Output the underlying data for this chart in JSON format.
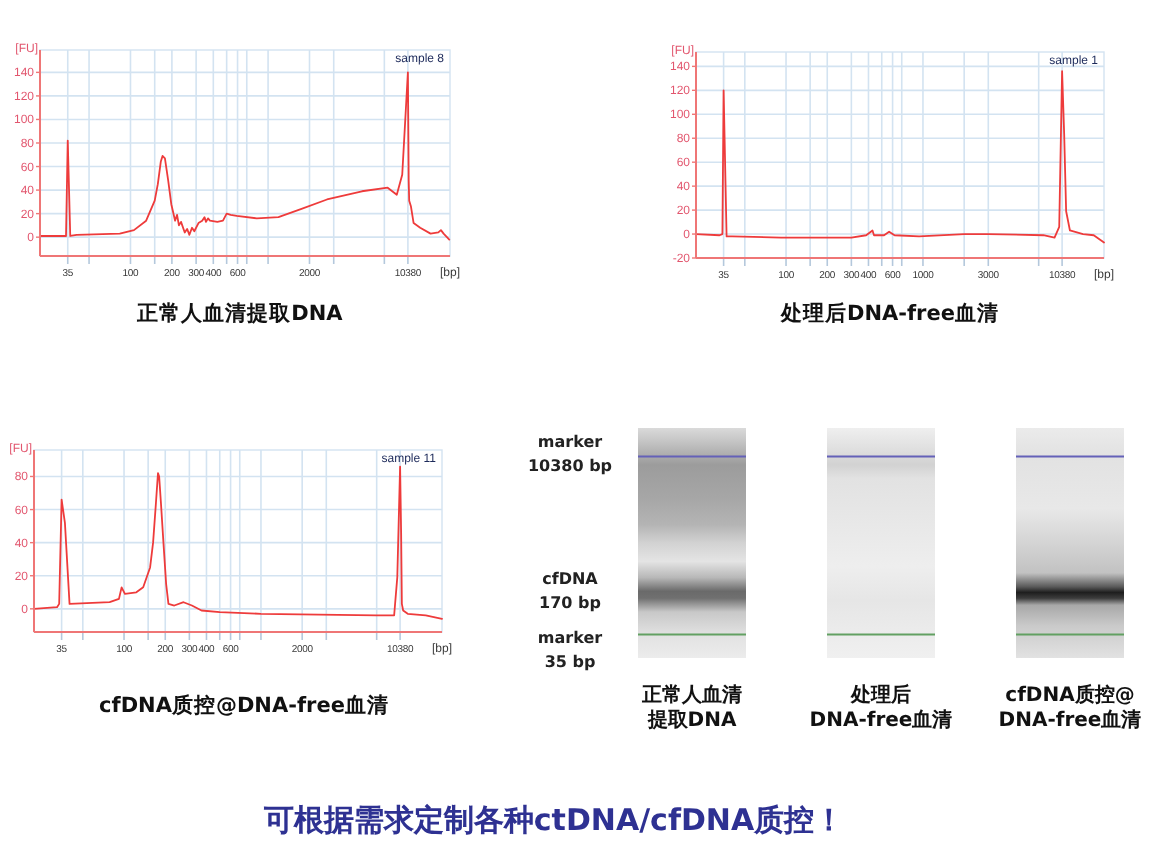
{
  "chart_data": [
    {
      "type": "line",
      "title": "正常人血清提取DNA",
      "xlabel": "[bp]",
      "ylabel": "[FU]",
      "annotations": [
        "sample 8"
      ],
      "log": "x",
      "grid": true,
      "color": "#ee3b3b",
      "xlim": [
        22,
        21000
      ],
      "xticks": [
        35,
        {
          "value": 50,
          "label": null
        },
        100,
        {
          "value": 150,
          "label": null
        },
        200,
        300,
        400,
        {
          "value": 500,
          "label": null
        },
        600,
        {
          "value": 700,
          "label": null
        },
        {
          "value": 1000,
          "label": null
        },
        2000,
        {
          "value": 3000,
          "label": null
        },
        {
          "value": 7000,
          "label": null
        },
        10380
      ],
      "ylim": [
        -16,
        159
      ],
      "yticks": [
        0,
        20,
        40,
        60,
        80,
        100,
        120,
        140
      ],
      "x": [
        22,
        33.1,
        34,
        35,
        36.5,
        40.6,
        83.6,
        106,
        130,
        150,
        158,
        166,
        171,
        178,
        188,
        198,
        211,
        218,
        225,
        233,
        248,
        258,
        268,
        280,
        291,
        312,
        332,
        345,
        354,
        366,
        378,
        428,
        470,
        500,
        535,
        592,
        828,
        1190,
        1750,
        2680,
        4810,
        7400,
        8620,
        9440,
        10380,
        10520,
        10610,
        10930,
        11420,
        12750,
        15170,
        17280,
        18040,
        18870,
        20750
      ],
      "values": [
        1,
        1,
        1,
        82,
        1,
        2,
        3,
        6,
        14,
        31,
        45,
        64,
        69,
        67,
        48,
        28,
        14,
        19,
        10,
        13,
        4,
        7,
        2,
        8,
        5,
        12,
        14,
        17,
        13,
        16,
        14,
        13,
        14,
        20,
        19,
        18,
        16,
        17,
        24,
        32,
        39,
        42,
        36,
        53,
        140,
        48,
        31,
        26,
        12,
        8,
        3,
        4,
        6,
        3,
        -2
      ]
    },
    {
      "type": "line",
      "title": "处理后DNA-free血清",
      "xlabel": "[bp]",
      "ylabel": "[FU]",
      "annotations": [
        "sample 1"
      ],
      "log": "x",
      "grid": true,
      "color": "#ee3b3b",
      "xlim": [
        22,
        21000
      ],
      "xticks": [
        35,
        {
          "value": 50,
          "label": null
        },
        100,
        {
          "value": 150,
          "label": null
        },
        200,
        300,
        400,
        {
          "value": 500,
          "label": null
        },
        600,
        {
          "value": 700,
          "label": null
        },
        1000,
        {
          "value": 2000,
          "label": null
        },
        3000,
        {
          "value": 7000,
          "label": null
        },
        10380
      ],
      "ylim": [
        -20,
        152
      ],
      "yticks": [
        -20,
        0,
        20,
        40,
        60,
        80,
        100,
        120,
        140
      ],
      "x": [
        22,
        32.7,
        34.3,
        35,
        36.8,
        40.4,
        92,
        200,
        300,
        385,
        428,
        439,
        520,
        566,
        620,
        937,
        2000,
        3000,
        7570,
        9140,
        9890,
        10380,
        10750,
        11110,
        11840,
        14760,
        17670,
        21000
      ],
      "values": [
        0,
        -1,
        0,
        120,
        -2,
        -2,
        -3,
        -3,
        -3,
        -1,
        3,
        -1,
        -1,
        2,
        -1,
        -2,
        0,
        0,
        -1,
        -3,
        6,
        136,
        83,
        19,
        3,
        0,
        -1,
        -7
      ]
    },
    {
      "type": "line",
      "title": "cfDNA质控@DNA-free血清",
      "xlabel": "[bp]",
      "ylabel": "[FU]",
      "annotations": [
        "sample 11"
      ],
      "log": "x",
      "grid": true,
      "color": "#ee3b3b",
      "xlim": [
        22,
        21000
      ],
      "xticks": [
        35,
        {
          "value": 50,
          "label": null
        },
        100,
        {
          "value": 150,
          "label": null
        },
        200,
        300,
        400,
        {
          "value": 500,
          "label": null
        },
        600,
        {
          "value": 700,
          "label": null
        },
        {
          "value": 1000,
          "label": null
        },
        2000,
        {
          "value": 3000,
          "label": null
        },
        {
          "value": 7000,
          "label": null
        },
        10380
      ],
      "ylim": [
        -14,
        96
      ],
      "yticks": [
        0,
        20,
        40,
        60,
        80
      ],
      "x": [
        22,
        32.4,
        33.6,
        35,
        37,
        40,
        78.5,
        91.8,
        96,
        101.5,
        123,
        138,
        155,
        163,
        171,
        177,
        180.5,
        186,
        194,
        203,
        211,
        233,
        272,
        313,
        368,
        500,
        1000,
        7000,
        9390,
        9900,
        10380,
        10560,
        10690,
        10930,
        11800,
        15980,
        21000
      ],
      "values": [
        0,
        1,
        3,
        66,
        52,
        3,
        4,
        6,
        13,
        9,
        10,
        13,
        25,
        40,
        64,
        82,
        80,
        64,
        40,
        15,
        3,
        2,
        4,
        2,
        -1,
        -2,
        -3,
        -4,
        -4,
        19,
        86,
        46,
        3,
        -1,
        -3,
        -4,
        -6
      ]
    },
    {
      "type": "other",
      "categories": [
        "正常人血清提取DNA",
        "处理后DNA-free血清",
        "cfDNA质控@DNA-free血清"
      ],
      "annotations": [
        "marker\n10380 bp",
        "cfDNA\n170 bp",
        "marker\n35 bp"
      ]
    },
    {
      "type": "other",
      "title": "可根据需求定制各种ctDNA/cfDNA质控！"
    }
  ]
}
